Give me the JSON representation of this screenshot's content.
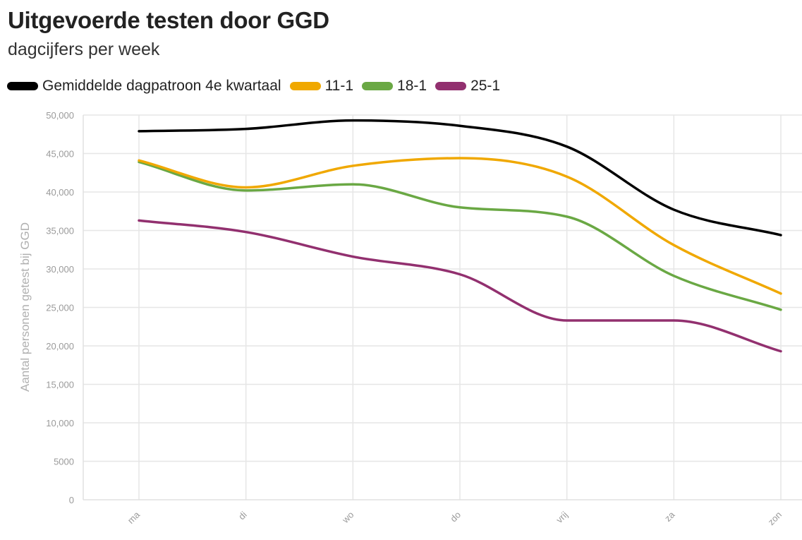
{
  "chart_data": {
    "type": "line",
    "title": "Uitgevoerde testen door GGD",
    "subtitle": "dagcijfers per week",
    "ylabel": "Aantal personen getest bij GGD",
    "xlabel": "",
    "categories": [
      "ma",
      "di",
      "wo",
      "do",
      "vrij",
      "za",
      "zon"
    ],
    "ylim": [
      0,
      50000
    ],
    "yticks": [
      0,
      5000,
      10000,
      15000,
      20000,
      25000,
      30000,
      35000,
      40000,
      45000,
      50000
    ],
    "ytick_labels": [
      "0",
      "5000",
      "10,000",
      "15,000",
      "20,000",
      "25,000",
      "30,000",
      "35,000",
      "40,000",
      "45,000",
      "50,000"
    ],
    "grid": true,
    "legend_position": "top-left",
    "series": [
      {
        "name": "Gemiddelde dagpatroon 4e kwartaal",
        "color": "#000000",
        "values": [
          47900,
          48200,
          49300,
          48600,
          45900,
          37700,
          34400
        ]
      },
      {
        "name": "11-1",
        "color": "#f0a800",
        "values": [
          44100,
          40600,
          43400,
          44400,
          42000,
          33100,
          26800
        ]
      },
      {
        "name": "18-1",
        "color": "#6aa844",
        "values": [
          43900,
          40200,
          41000,
          38000,
          36800,
          29100,
          24700
        ]
      },
      {
        "name": "25-1",
        "color": "#92306f",
        "values": [
          36300,
          34800,
          31600,
          29300,
          23300,
          23300,
          19300
        ]
      }
    ]
  }
}
